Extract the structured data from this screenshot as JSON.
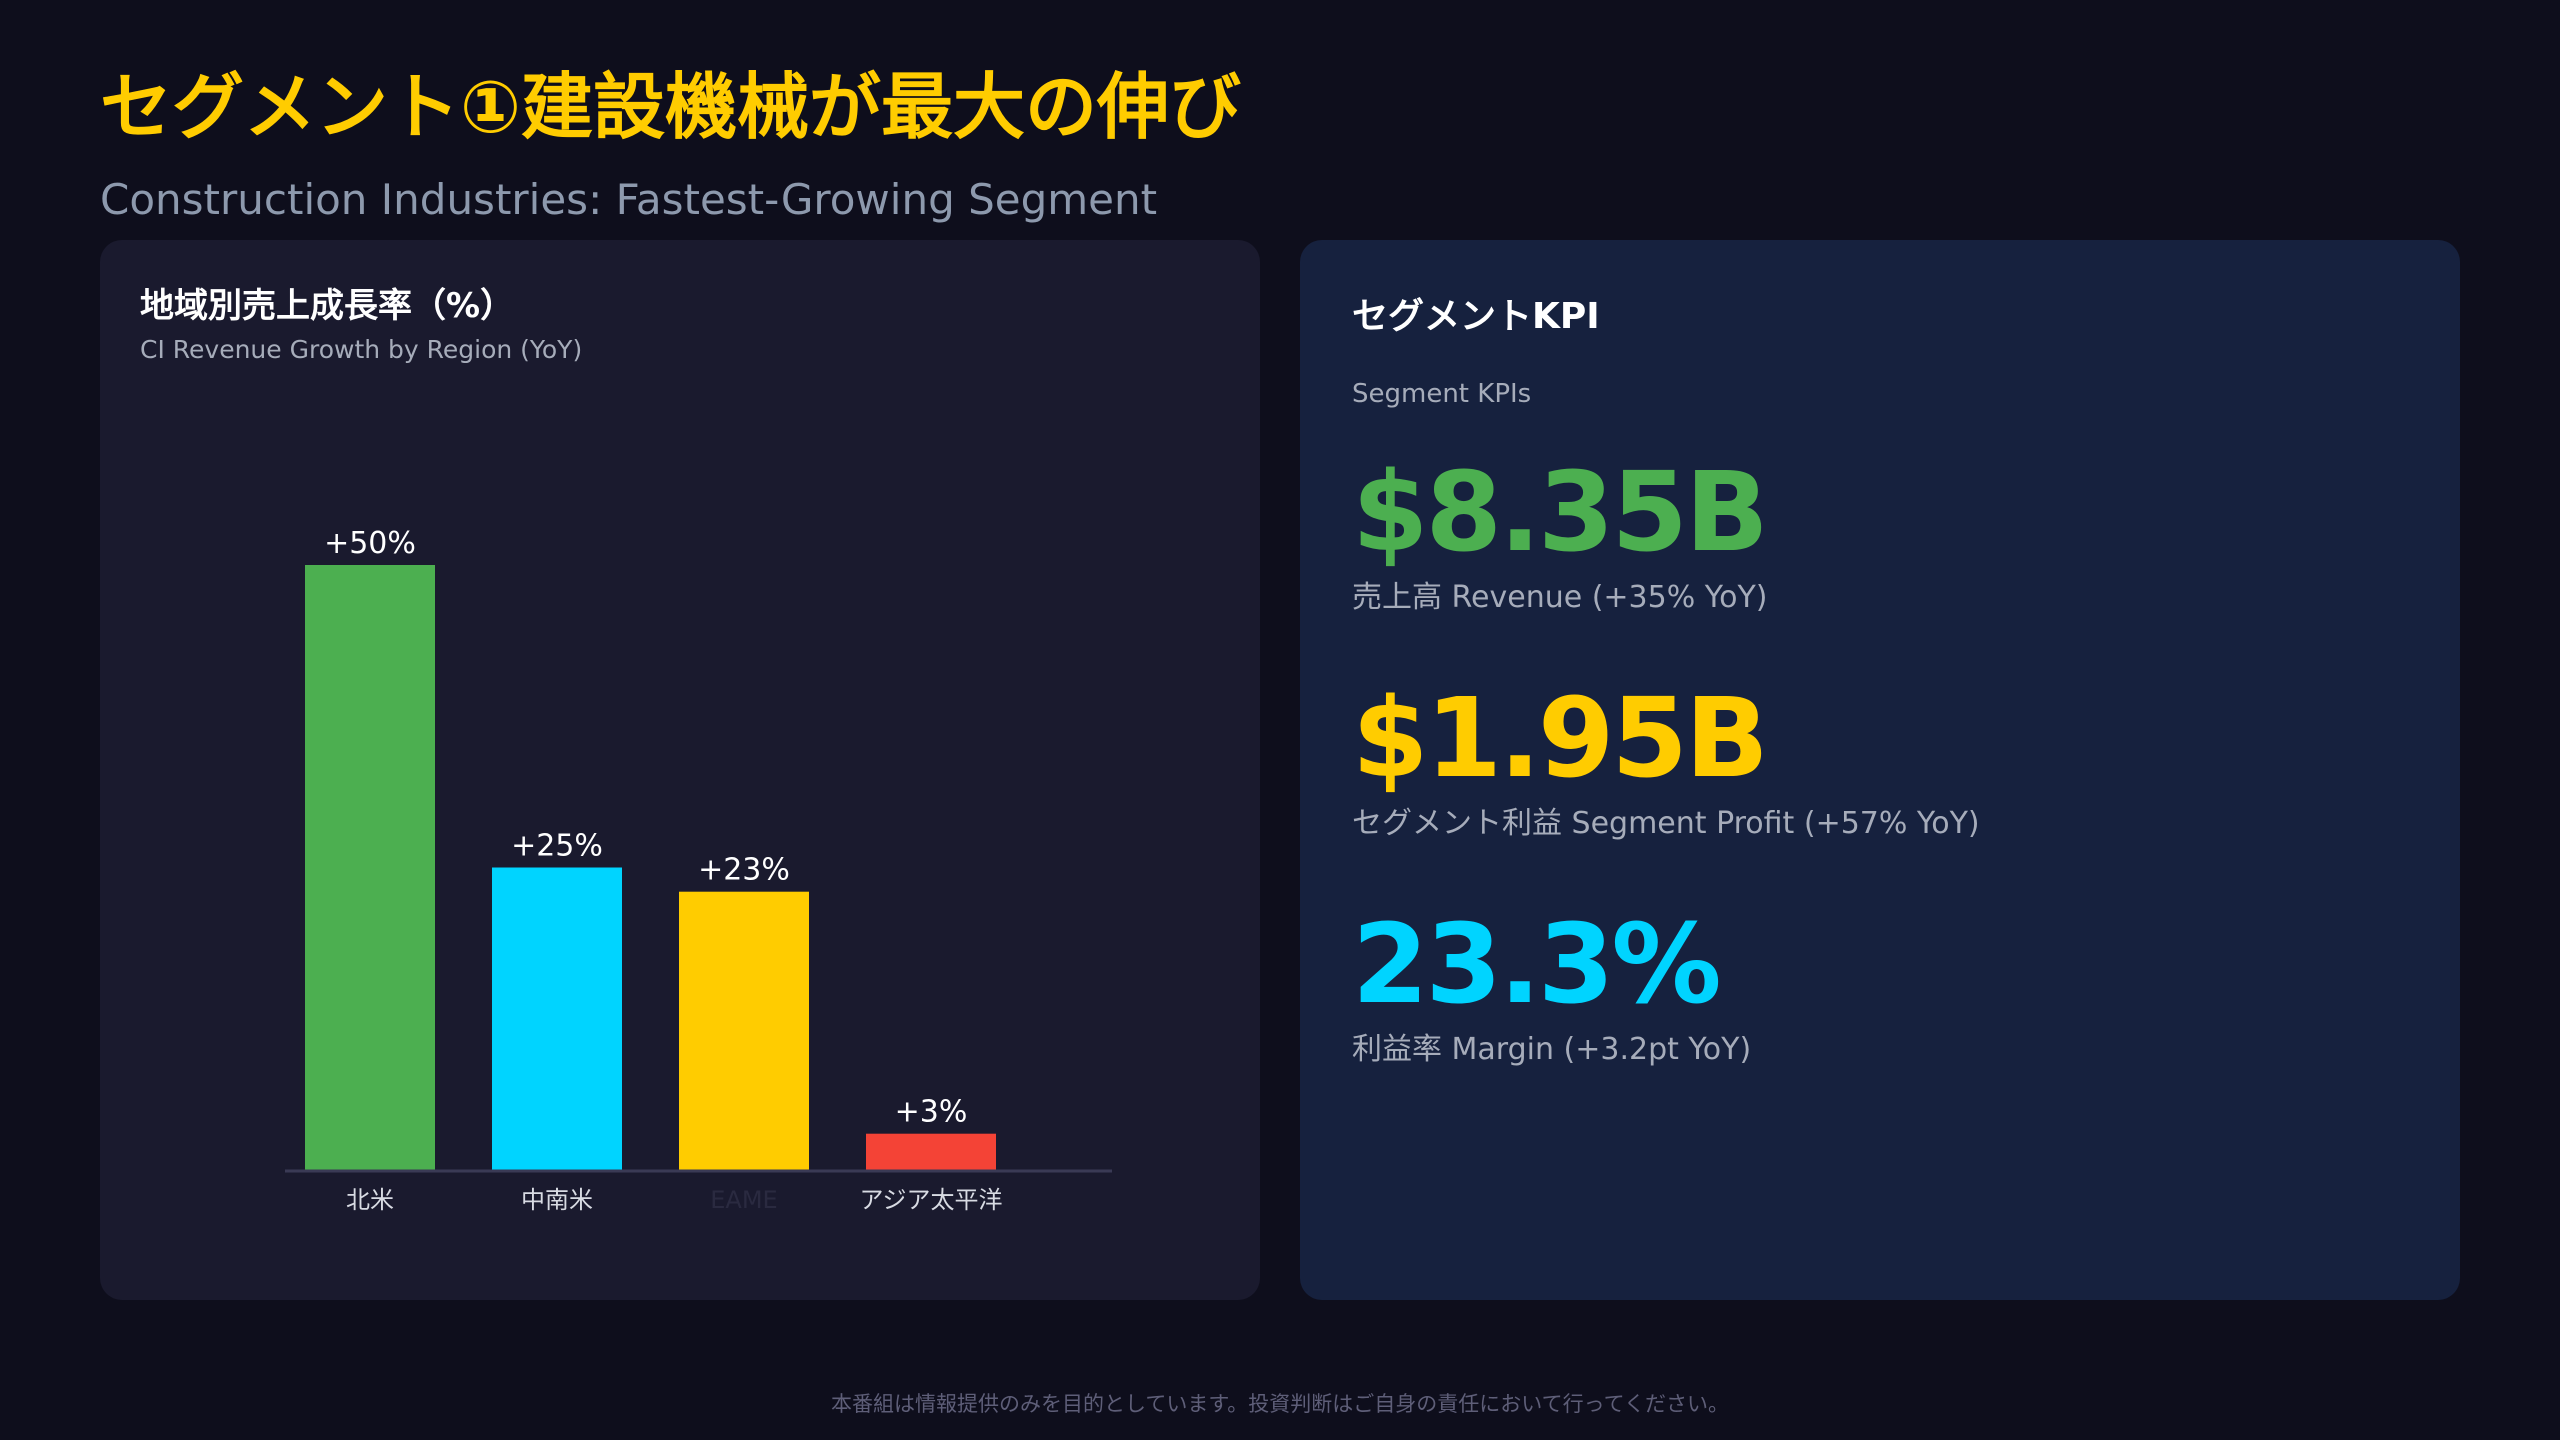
{
  "header": {
    "title": "セグメント①建設機械が最大の伸び",
    "subtitle": "Construction Industries: Fastest-Growing Segment"
  },
  "chart_panel": {
    "title": "地域別売上成長率（%）",
    "subtitle": "CI Revenue Growth by Region (YoY)"
  },
  "chart_data": {
    "type": "bar",
    "title": "地域別売上成長率（%）",
    "subtitle": "CI Revenue Growth by Region (YoY)",
    "categories": [
      "北米",
      "中南米",
      "EAME",
      "アジア太平洋"
    ],
    "values": [
      50,
      25,
      23,
      3
    ],
    "data_labels": [
      "+50%",
      "+25%",
      "+23%",
      "+3%"
    ],
    "colors": [
      "#4caf50",
      "#00d4ff",
      "#ffcc00",
      "#f44336"
    ],
    "ylim": [
      0,
      50
    ],
    "grid": false,
    "legend": "none"
  },
  "kpi_panel": {
    "title": "セグメントKPI",
    "subtitle": "Segment KPIs",
    "items": [
      {
        "value": "$8.35B",
        "label": "売上高 Revenue (+35% YoY)",
        "color": "#4caf50"
      },
      {
        "value": "$1.95B",
        "label": "セグメント利益 Segment Profit (+57% YoY)",
        "color": "#ffcc00"
      },
      {
        "value": "23.3%",
        "label": "利益率 Margin (+3.2pt YoY)",
        "color": "#00d4ff"
      }
    ]
  },
  "footer": {
    "disclaimer": "本番組は情報提供のみを目的としています。投資判断はご自身の責任において行ってください。"
  },
  "colors": {
    "background": "#0e0e1c",
    "accent": "#ffcc00"
  }
}
